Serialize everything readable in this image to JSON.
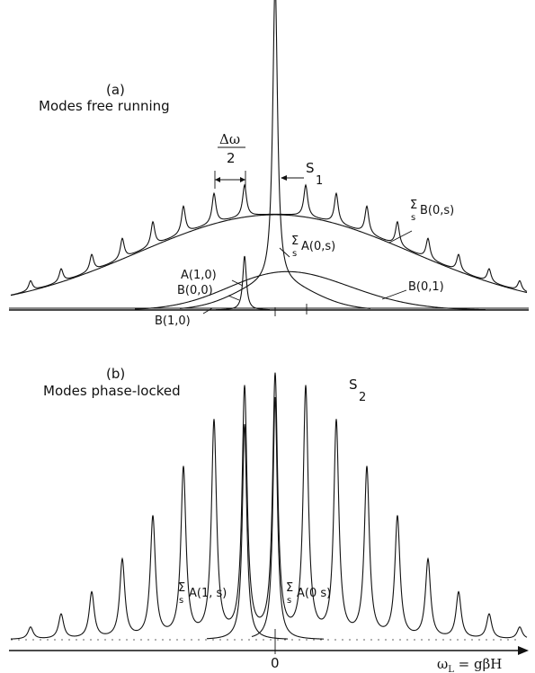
{
  "panel_a": {
    "label": "(a)",
    "caption": "Modes free running",
    "spacing_num": "Δω",
    "spacing_den": "2",
    "labels": {
      "s1_main": "S",
      "s1_sub": "1",
      "sum_b0s": "B(0,s)",
      "sum_a0s": "A(0,s)",
      "a10": "A(1,0)",
      "b00": "B(0,0)",
      "b01": "B(0,1)",
      "b10": "B(1,0)"
    }
  },
  "panel_b": {
    "label": "(b)",
    "caption": "Modes phase-locked",
    "labels": {
      "s2_main": "S",
      "s2_sub": "2",
      "sum_a1s": "A(1, s)",
      "sum_a0s": "A(0 s)"
    }
  },
  "symbols": {
    "sum": "Σ",
    "sum_index": "s"
  },
  "axis": {
    "origin_label": "0",
    "x_label": "ω",
    "x_label_sub": "L",
    "x_label_rest": " = gβH"
  }
}
